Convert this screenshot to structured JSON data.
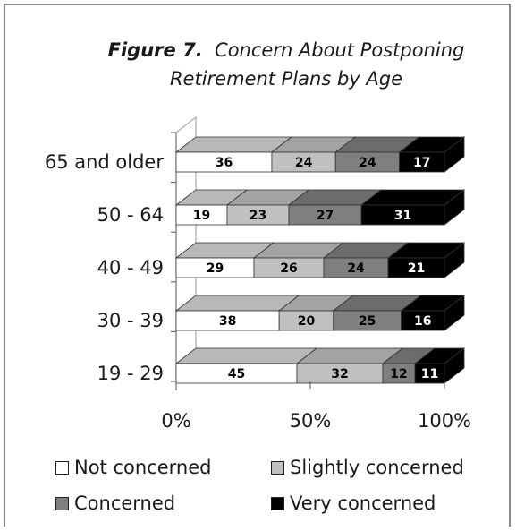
{
  "chart_data": {
    "type": "bar",
    "stacked": "percent",
    "orientation": "horizontal",
    "title_prefix": "Figure 7.",
    "title_line1": "Concern About Postponing",
    "title_line2": "Retirement Plans by Age",
    "categories": [
      "65 and older",
      "50 - 64",
      "40 - 49",
      "30 - 39",
      "19 - 29"
    ],
    "series": [
      {
        "name": "Not concerned",
        "values": [
          36,
          19,
          29,
          38,
          45
        ],
        "color": "#ffffff",
        "label_color": "#000000"
      },
      {
        "name": "Slightly concerned",
        "values": [
          24,
          23,
          26,
          20,
          32
        ],
        "color": "#c0c0c0",
        "label_color": "#000000"
      },
      {
        "name": "Concerned",
        "values": [
          24,
          27,
          24,
          25,
          12
        ],
        "color": "#7f7f7f",
        "label_color": "#000000"
      },
      {
        "name": "Very concerned",
        "values": [
          17,
          31,
          21,
          16,
          11
        ],
        "color": "#000000",
        "label_color": "#ffffff"
      }
    ],
    "x_ticks": [
      "0%",
      "50%",
      "100%"
    ],
    "xlim": [
      0,
      100
    ],
    "legend_position": "bottom"
  }
}
